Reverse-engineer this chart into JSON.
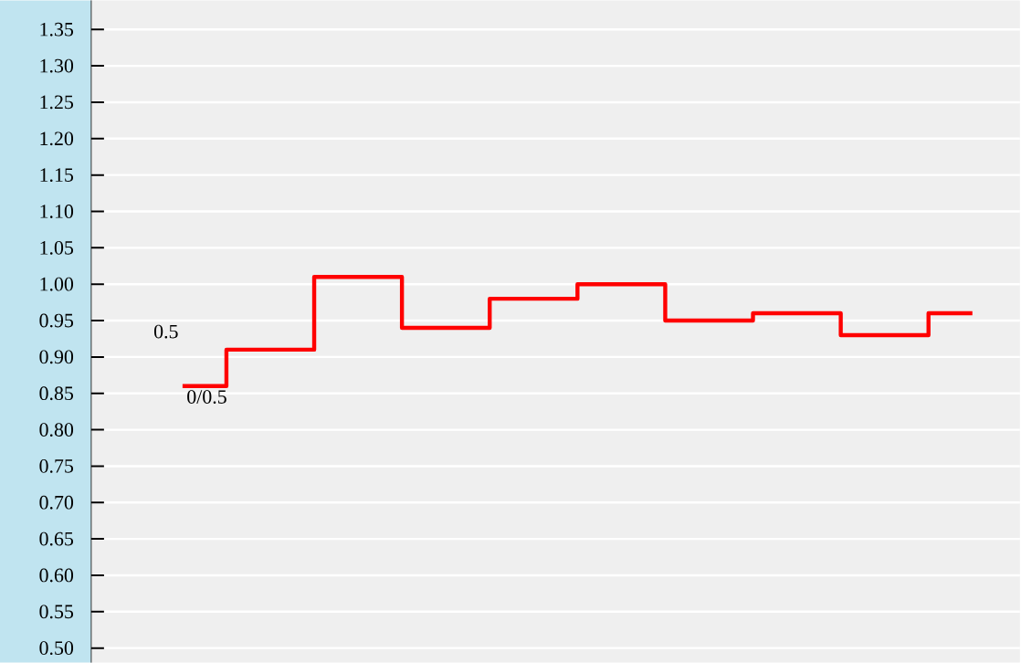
{
  "chart_data": {
    "type": "step",
    "categories": [
      null,
      null,
      null,
      null,
      null,
      null,
      null,
      null,
      null,
      null
    ],
    "ylim": [
      0.48,
      1.39
    ],
    "yticks": [
      {
        "value": 0.5,
        "label": "0.50"
      },
      {
        "value": 0.55,
        "label": "0.55"
      },
      {
        "value": 0.6,
        "label": "0.60"
      },
      {
        "value": 0.65,
        "label": "0.65"
      },
      {
        "value": 0.7,
        "label": "0.70"
      },
      {
        "value": 0.75,
        "label": "0.75"
      },
      {
        "value": 0.8,
        "label": "0.80"
      },
      {
        "value": 0.85,
        "label": "0.85"
      },
      {
        "value": 0.9,
        "label": "0.90"
      },
      {
        "value": 0.95,
        "label": "0.95"
      },
      {
        "value": 1.0,
        "label": "1.00"
      },
      {
        "value": 1.05,
        "label": "1.05"
      },
      {
        "value": 1.1,
        "label": "1.10"
      },
      {
        "value": 1.15,
        "label": "1.15"
      },
      {
        "value": 1.2,
        "label": "1.20"
      },
      {
        "value": 1.25,
        "label": "1.25"
      },
      {
        "value": 1.3,
        "label": "1.30"
      },
      {
        "value": 1.35,
        "label": "1.35"
      }
    ],
    "tick_labels": "y",
    "grid": "y",
    "series": [
      {
        "color": "#ff0000",
        "values": [
          0.86,
          0.91,
          1.01,
          0.94,
          0.98,
          1.0,
          0.95,
          0.96,
          0.93,
          0.96
        ]
      }
    ],
    "annotations": [
      "0.5",
      "0/0.5"
    ]
  }
}
